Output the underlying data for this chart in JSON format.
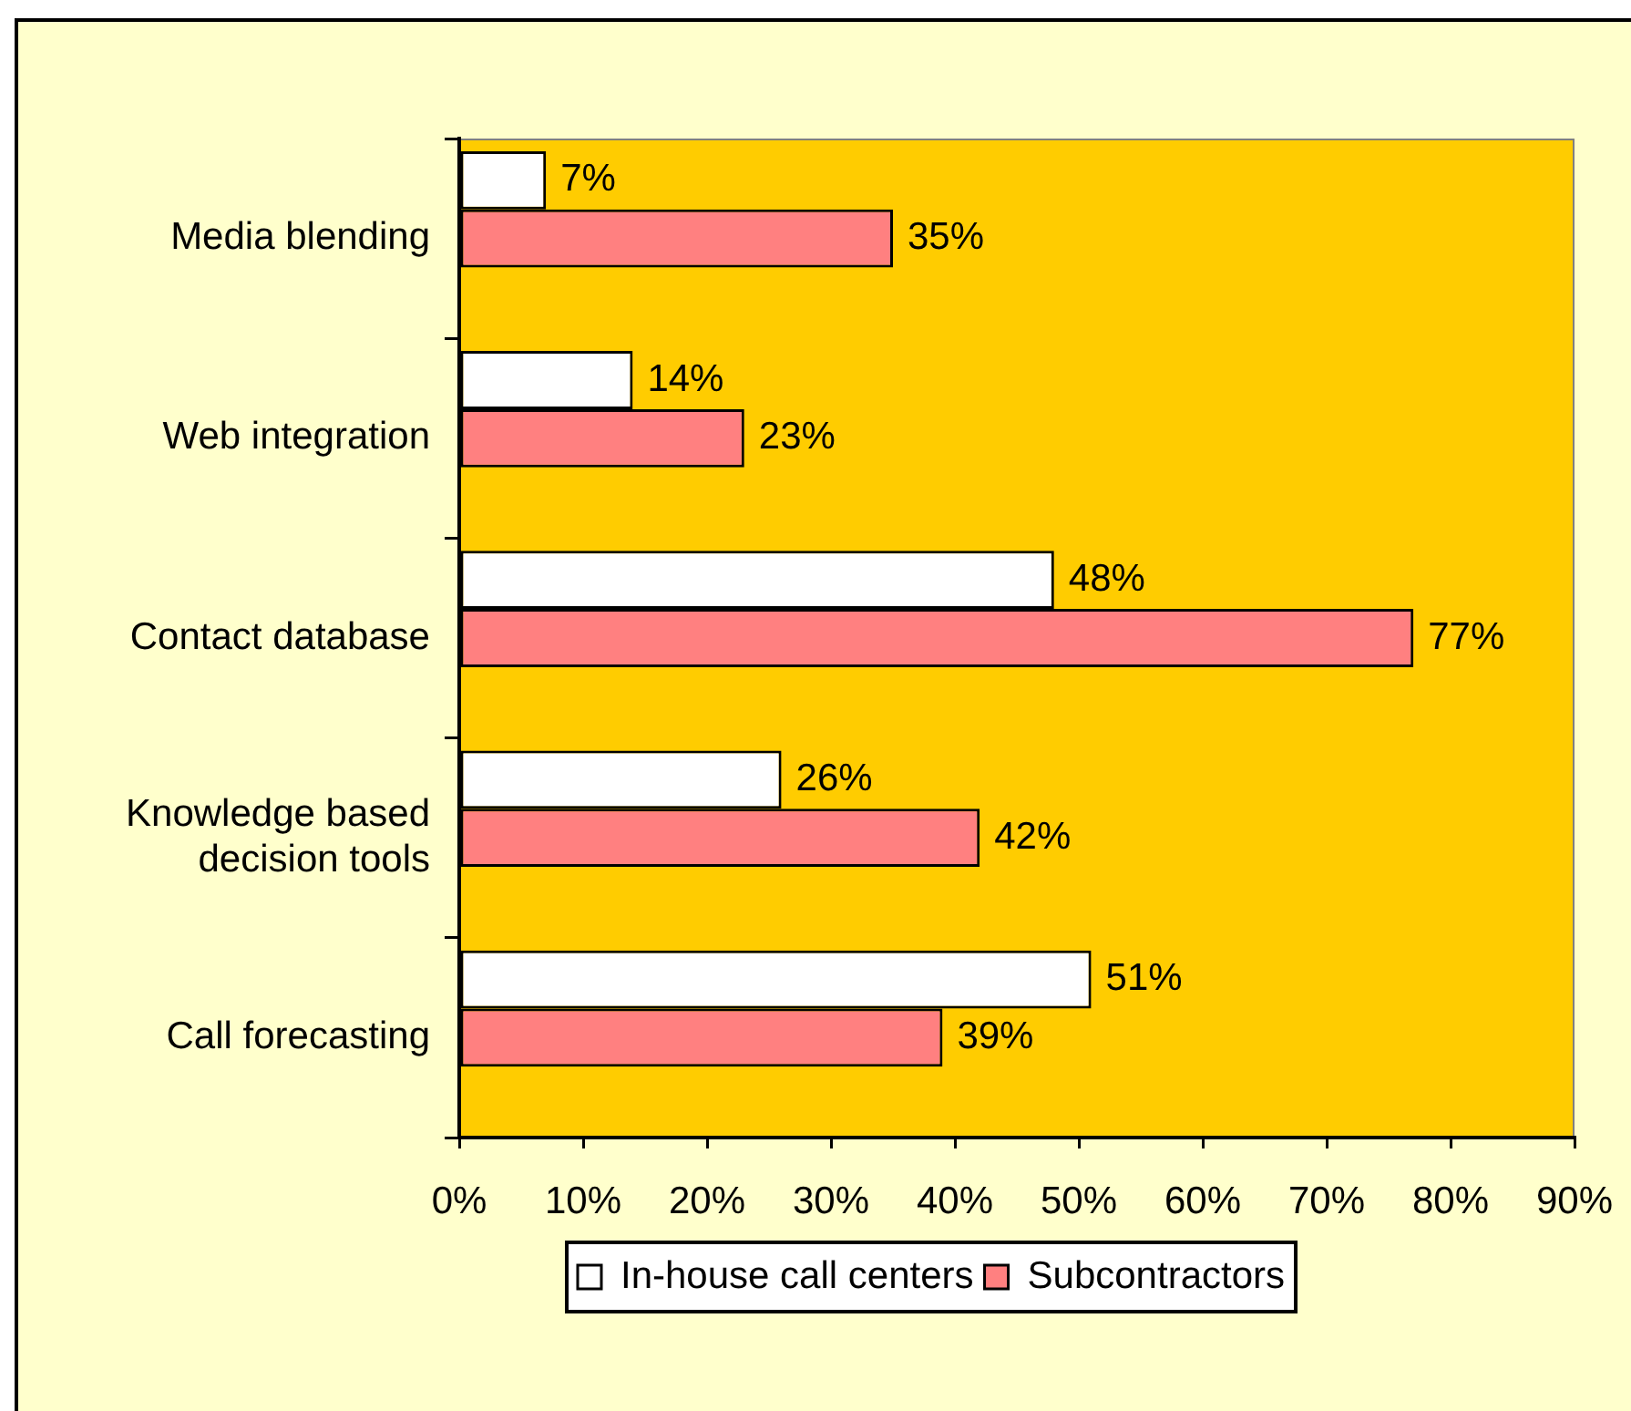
{
  "chart_data": {
    "type": "bar",
    "orientation": "horizontal",
    "categories": [
      "Media blending",
      "Web integration",
      "Contact database",
      "Knowledge based decision tools",
      "Call forecasting"
    ],
    "series": [
      {
        "name": "In-house call centers",
        "color": "#ffffff",
        "values": [
          7,
          14,
          48,
          26,
          51
        ],
        "value_labels": [
          "7%",
          "14%",
          "48%",
          "26%",
          "51%"
        ]
      },
      {
        "name": "Subcontractors",
        "color": "#ff8080",
        "values": [
          35,
          23,
          77,
          42,
          39
        ],
        "value_labels": [
          "35%",
          "23%",
          "77%",
          "42%",
          "39%"
        ]
      }
    ],
    "xlim": [
      0,
      90
    ],
    "xticks": [
      {
        "value": 0,
        "label": "0%"
      },
      {
        "value": 10,
        "label": "10%"
      },
      {
        "value": 20,
        "label": "20%"
      },
      {
        "value": 30,
        "label": "30%"
      },
      {
        "value": 40,
        "label": "40%"
      },
      {
        "value": 50,
        "label": "50%"
      },
      {
        "value": 60,
        "label": "60%"
      },
      {
        "value": 70,
        "label": "70%"
      },
      {
        "value": 80,
        "label": "80%"
      },
      {
        "value": 90,
        "label": "90%"
      }
    ],
    "legend": "bottom"
  }
}
